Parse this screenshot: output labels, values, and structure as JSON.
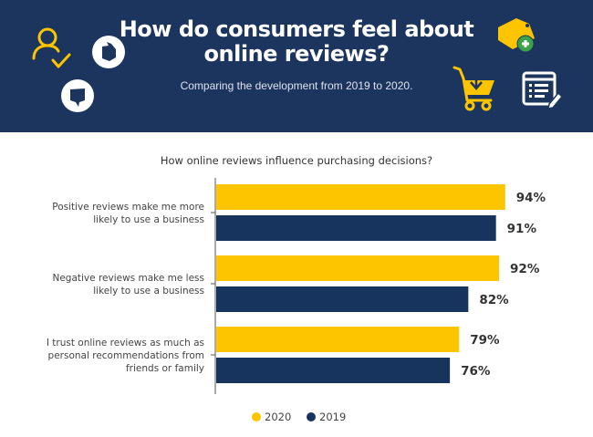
{
  "header": {
    "title_line1": "How do consumers feel about",
    "title_line2": "online reviews?",
    "subtitle": "Comparing the development from 2019 to 2020.",
    "background": "#1c355e",
    "icons": [
      "user-check-icon",
      "thumbs-up-icon",
      "thumbs-down-icon",
      "price-tag-add-icon",
      "shopping-cart-icon",
      "checklist-edit-icon"
    ]
  },
  "chart_data": {
    "type": "bar",
    "orientation": "horizontal",
    "title": "How online reviews influence purchasing decisions?",
    "categories": [
      [
        "Positive reviews make me more",
        "likely to use a business"
      ],
      [
        "Negative reviews make me less",
        "likely to use a business"
      ],
      [
        "I trust online reviews as much as",
        "personal recommendations from",
        "friends or family"
      ]
    ],
    "series": [
      {
        "name": "2020",
        "color": "#fdc500",
        "values": [
          94,
          92,
          79
        ],
        "labels": [
          "94%",
          "92%",
          "79%"
        ]
      },
      {
        "name": "2019",
        "color": "#17345f",
        "values": [
          91,
          82,
          76
        ],
        "labels": [
          "91%",
          "82%",
          "76%"
        ]
      }
    ],
    "xlim": [
      0,
      100
    ],
    "unit": "%",
    "grid": false,
    "legend": "bottom-center",
    "xlabel": "",
    "ylabel": ""
  }
}
